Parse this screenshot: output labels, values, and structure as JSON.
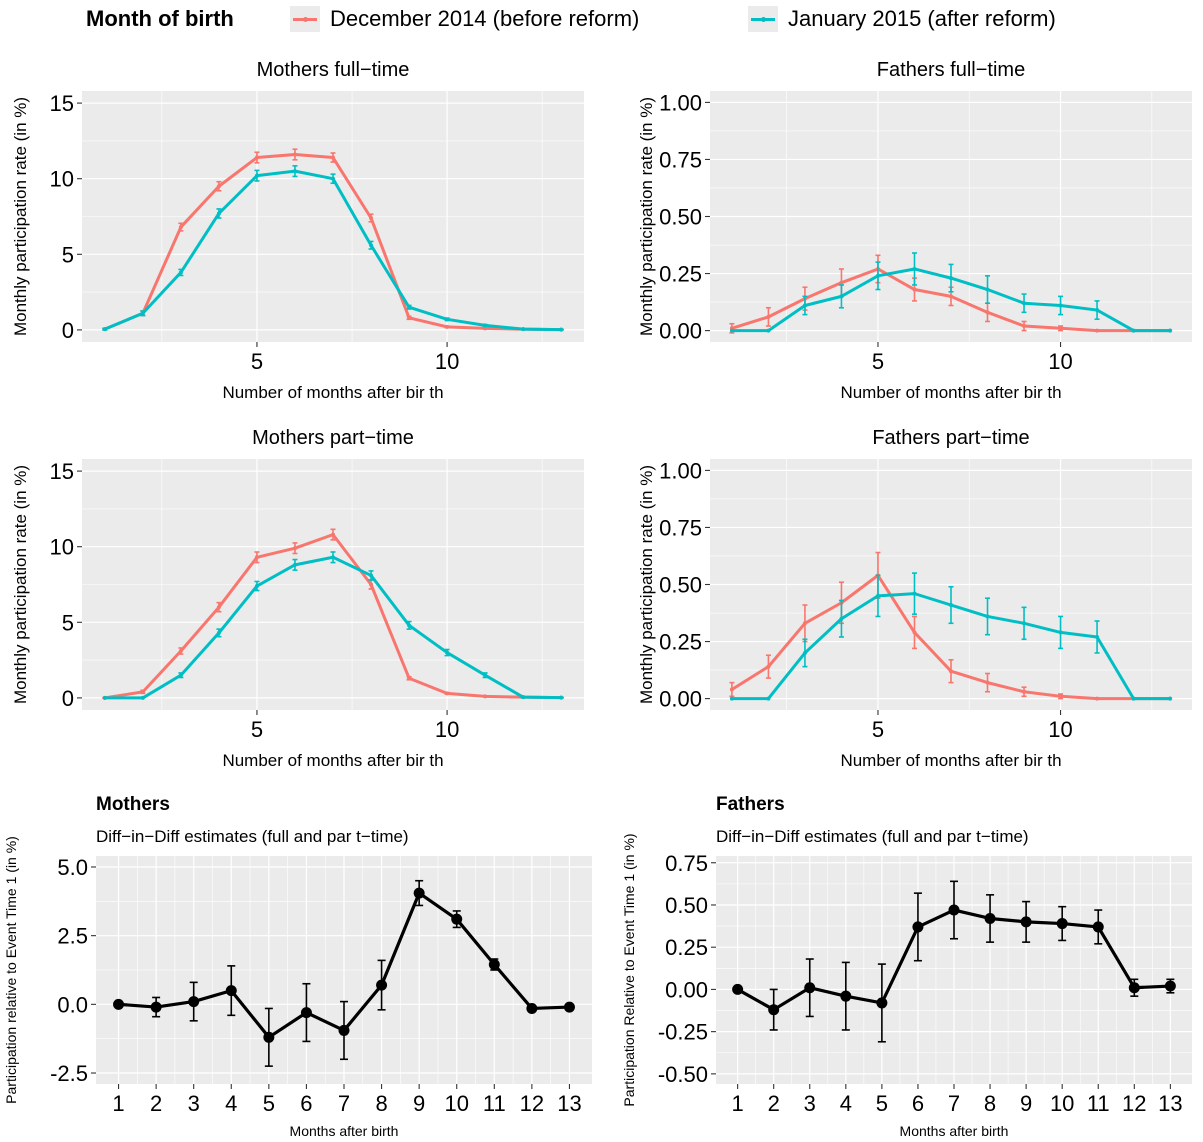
{
  "legend": {
    "title": "Month of birth",
    "items": [
      {
        "label": "December 2014 (before reform)",
        "color": "#F8766D"
      },
      {
        "label": "January 2015 (after reform)",
        "color": "#00BFC4"
      }
    ]
  },
  "colors": {
    "before": "#F8766D",
    "after": "#00BFC4",
    "did": "#000000",
    "panel": "#ebebeb",
    "grid": "#ffffff"
  },
  "chart_data": [
    {
      "id": "mothers-full-time",
      "type": "line",
      "title": "Mothers full−time",
      "xlabel": "Number of months after bir th",
      "ylabel": "Monthly participation rate (in %)",
      "xlim": [
        0.4,
        13.6
      ],
      "ylim": [
        -0.8,
        15.8
      ],
      "xticks": [
        5,
        10
      ],
      "xtick_labels": [
        "5",
        "10"
      ],
      "yticks": [
        0,
        5,
        10,
        15
      ],
      "ytick_labels": [
        "0",
        "5",
        "10",
        "15"
      ],
      "x": [
        1,
        2,
        3,
        4,
        5,
        6,
        7,
        8,
        9,
        10,
        11,
        12,
        13
      ],
      "series": [
        {
          "name": "December 2014 (before reform)",
          "color": "#F8766D",
          "values": [
            0.05,
            1.1,
            6.8,
            9.5,
            11.4,
            11.6,
            11.4,
            7.4,
            0.8,
            0.2,
            0.1,
            0.05,
            0.02
          ],
          "err": [
            0.05,
            0.15,
            0.25,
            0.3,
            0.35,
            0.35,
            0.3,
            0.25,
            0.1,
            0.05,
            0.03,
            0.02,
            0.01
          ]
        },
        {
          "name": "January 2015 (after reform)",
          "color": "#00BFC4",
          "values": [
            0.05,
            1.1,
            3.8,
            7.7,
            10.2,
            10.5,
            10.0,
            5.6,
            1.5,
            0.7,
            0.3,
            0.05,
            0.02
          ],
          "err": [
            0.05,
            0.15,
            0.2,
            0.3,
            0.35,
            0.35,
            0.3,
            0.25,
            0.12,
            0.08,
            0.05,
            0.02,
            0.01
          ]
        }
      ]
    },
    {
      "id": "fathers-full-time",
      "type": "line",
      "title": "Fathers full−time",
      "xlabel": "Number of months after bir th",
      "ylabel": "Monthly participation rate (in %)",
      "xlim": [
        0.4,
        13.6
      ],
      "ylim": [
        -0.05,
        1.05
      ],
      "xticks": [
        5,
        10
      ],
      "xtick_labels": [
        "5",
        "10"
      ],
      "yticks": [
        0,
        0.25,
        0.5,
        0.75,
        1.0
      ],
      "ytick_labels": [
        "0.00",
        "0.25",
        "0.50",
        "0.75",
        "1.00"
      ],
      "x": [
        1,
        2,
        3,
        4,
        5,
        6,
        7,
        8,
        9,
        10,
        11,
        12,
        13
      ],
      "series": [
        {
          "name": "December 2014 (before reform)",
          "color": "#F8766D",
          "values": [
            0.01,
            0.06,
            0.14,
            0.21,
            0.27,
            0.18,
            0.15,
            0.08,
            0.02,
            0.01,
            0.0,
            0.0,
            0.0
          ],
          "err": [
            0.02,
            0.04,
            0.05,
            0.06,
            0.06,
            0.05,
            0.04,
            0.04,
            0.02,
            0.01,
            0.0,
            0.0,
            0.0
          ]
        },
        {
          "name": "January 2015 (after reform)",
          "color": "#00BFC4",
          "values": [
            0.0,
            0.0,
            0.11,
            0.15,
            0.24,
            0.27,
            0.23,
            0.18,
            0.12,
            0.11,
            0.09,
            0.0,
            0.0
          ],
          "err": [
            0.0,
            0.0,
            0.04,
            0.05,
            0.06,
            0.07,
            0.06,
            0.06,
            0.04,
            0.04,
            0.04,
            0.0,
            0.0
          ]
        }
      ]
    },
    {
      "id": "mothers-part-time",
      "type": "line",
      "title": "Mothers part−time",
      "xlabel": "Number of months after bir th",
      "ylabel": "Monthly participation rate (in %)",
      "xlim": [
        0.4,
        13.6
      ],
      "ylim": [
        -0.8,
        15.8
      ],
      "xticks": [
        5,
        10
      ],
      "xtick_labels": [
        "5",
        "10"
      ],
      "yticks": [
        0,
        5,
        10,
        15
      ],
      "ytick_labels": [
        "0",
        "5",
        "10",
        "15"
      ],
      "x": [
        1,
        2,
        3,
        4,
        5,
        6,
        7,
        8,
        9,
        10,
        11,
        12,
        13
      ],
      "series": [
        {
          "name": "December 2014 (before reform)",
          "color": "#F8766D",
          "values": [
            0.0,
            0.4,
            3.1,
            6.0,
            9.3,
            9.9,
            10.8,
            7.5,
            1.3,
            0.3,
            0.1,
            0.05,
            0.02
          ],
          "err": [
            0.02,
            0.1,
            0.2,
            0.3,
            0.35,
            0.35,
            0.35,
            0.3,
            0.1,
            0.05,
            0.03,
            0.02,
            0.01
          ]
        },
        {
          "name": "January 2015 (after reform)",
          "color": "#00BFC4",
          "values": [
            0.0,
            0.0,
            1.5,
            4.3,
            7.4,
            8.8,
            9.3,
            8.1,
            4.8,
            3.0,
            1.5,
            0.05,
            0.02
          ],
          "err": [
            0.0,
            0.0,
            0.15,
            0.25,
            0.3,
            0.35,
            0.35,
            0.3,
            0.25,
            0.2,
            0.15,
            0.02,
            0.01
          ]
        }
      ]
    },
    {
      "id": "fathers-part-time",
      "type": "line",
      "title": "Fathers part−time",
      "xlabel": "Number of months after bir th",
      "ylabel": "Monthly participation rate (in %)",
      "xlim": [
        0.4,
        13.6
      ],
      "ylim": [
        -0.05,
        1.05
      ],
      "xticks": [
        5,
        10
      ],
      "xtick_labels": [
        "5",
        "10"
      ],
      "yticks": [
        0,
        0.25,
        0.5,
        0.75,
        1.0
      ],
      "ytick_labels": [
        "0.00",
        "0.25",
        "0.50",
        "0.75",
        "1.00"
      ],
      "x": [
        1,
        2,
        3,
        4,
        5,
        6,
        7,
        8,
        9,
        10,
        11,
        12,
        13
      ],
      "series": [
        {
          "name": "December 2014 (before reform)",
          "color": "#F8766D",
          "values": [
            0.04,
            0.14,
            0.33,
            0.42,
            0.54,
            0.29,
            0.12,
            0.07,
            0.03,
            0.01,
            0.0,
            0.0,
            0.0
          ],
          "err": [
            0.03,
            0.05,
            0.08,
            0.09,
            0.1,
            0.07,
            0.05,
            0.04,
            0.02,
            0.01,
            0.0,
            0.0,
            0.0
          ]
        },
        {
          "name": "January 2015 (after reform)",
          "color": "#00BFC4",
          "values": [
            0.0,
            0.0,
            0.2,
            0.35,
            0.45,
            0.46,
            0.41,
            0.36,
            0.33,
            0.29,
            0.27,
            0.0,
            0.0
          ],
          "err": [
            0.0,
            0.0,
            0.06,
            0.08,
            0.09,
            0.09,
            0.08,
            0.08,
            0.07,
            0.07,
            0.07,
            0.0,
            0.0
          ]
        }
      ]
    },
    {
      "id": "mothers-did",
      "type": "line",
      "title": "Mothers",
      "subtitle": "Diff−in−Diff estimates (full and par t−time)",
      "xlabel": "Months after birth",
      "ylabel": "Participation relative to Event Time 1 (in %)",
      "xlim": [
        0.4,
        13.6
      ],
      "ylim": [
        -2.9,
        5.4
      ],
      "xticks": [
        1,
        2,
        3,
        4,
        5,
        6,
        7,
        8,
        9,
        10,
        11,
        12,
        13
      ],
      "xtick_labels": [
        "1",
        "2",
        "3",
        "4",
        "5",
        "6",
        "7",
        "8",
        "9",
        "10",
        "11",
        "12",
        "13"
      ],
      "yticks": [
        -2.5,
        0,
        2.5,
        5.0
      ],
      "ytick_labels": [
        "-2.5",
        "0.0",
        "2.5",
        "5.0"
      ],
      "x": [
        1,
        2,
        3,
        4,
        5,
        6,
        7,
        8,
        9,
        10,
        11,
        12,
        13
      ],
      "series": [
        {
          "color": "#000000",
          "values": [
            0.0,
            -0.1,
            0.1,
            0.5,
            -1.2,
            -0.3,
            -0.95,
            0.7,
            4.05,
            3.1,
            1.45,
            -0.15,
            -0.1
          ],
          "err": [
            0.0,
            0.35,
            0.7,
            0.9,
            1.05,
            1.05,
            1.05,
            0.9,
            0.45,
            0.3,
            0.2,
            0.1,
            0.05
          ]
        }
      ]
    },
    {
      "id": "fathers-did",
      "type": "line",
      "title": "Fathers",
      "subtitle": "Diff−in−Diff estimates (full and par t−time)",
      "xlabel": "Months after birth",
      "ylabel": "Participation Relative to Event Time 1 (in %)",
      "xlim": [
        0.4,
        13.6
      ],
      "ylim": [
        -0.56,
        0.79
      ],
      "xticks": [
        1,
        2,
        3,
        4,
        5,
        6,
        7,
        8,
        9,
        10,
        11,
        12,
        13
      ],
      "xtick_labels": [
        "1",
        "2",
        "3",
        "4",
        "5",
        "6",
        "7",
        "8",
        "9",
        "10",
        "11",
        "12",
        "13"
      ],
      "yticks": [
        -0.5,
        -0.25,
        0,
        0.25,
        0.5,
        0.75
      ],
      "ytick_labels": [
        "-0.50",
        "-0.25",
        "0.00",
        "0.25",
        "0.50",
        "0.75"
      ],
      "x": [
        1,
        2,
        3,
        4,
        5,
        6,
        7,
        8,
        9,
        10,
        11,
        12,
        13
      ],
      "series": [
        {
          "color": "#000000",
          "values": [
            0.0,
            -0.12,
            0.01,
            -0.04,
            -0.08,
            0.37,
            0.47,
            0.42,
            0.4,
            0.39,
            0.37,
            0.01,
            0.02
          ],
          "err": [
            0.0,
            0.12,
            0.17,
            0.2,
            0.23,
            0.2,
            0.17,
            0.14,
            0.12,
            0.1,
            0.1,
            0.05,
            0.04
          ]
        }
      ]
    }
  ]
}
